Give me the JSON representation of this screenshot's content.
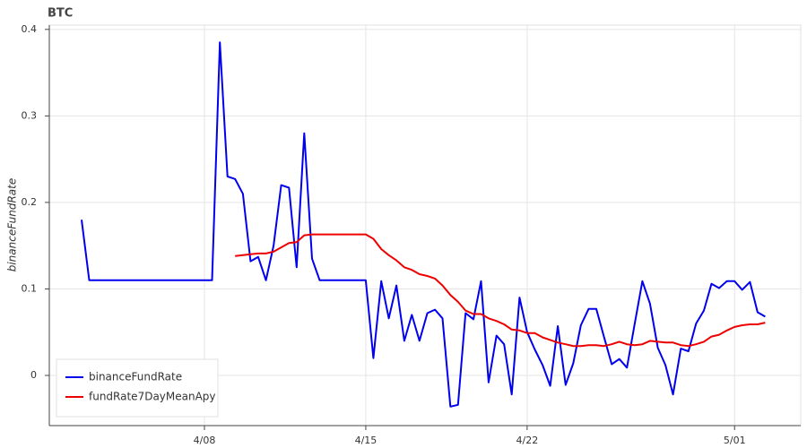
{
  "chart_data": {
    "type": "line",
    "title": "BTC",
    "y_label": "binanceFundRate",
    "x": [
      2.67,
      3,
      3.33,
      3.67,
      4,
      4.33,
      4.67,
      5,
      5.33,
      5.67,
      6,
      6.33,
      6.67,
      7,
      7.33,
      7.67,
      8,
      8.33,
      8.67,
      9,
      9.33,
      9.67,
      10,
      10.33,
      10.67,
      11,
      11.33,
      11.67,
      12,
      12.33,
      12.67,
      13,
      13.33,
      13.67,
      14,
      14.33,
      14.67,
      15,
      15.33,
      15.67,
      16,
      16.33,
      16.67,
      17,
      17.33,
      17.67,
      18,
      18.33,
      18.67,
      19,
      19.33,
      19.67,
      20,
      20.33,
      20.67,
      21,
      21.33,
      21.67,
      22,
      22.33,
      22.67,
      23,
      23.33,
      23.67,
      24,
      24.33,
      24.67,
      25,
      25.33,
      25.67,
      26,
      26.33,
      26.67,
      27,
      27.33,
      27.67,
      28,
      28.33,
      28.67,
      29,
      29.33,
      29.67,
      30,
      30.33,
      30.67,
      31,
      31.33,
      31.67,
      32,
      32.33
    ],
    "series": [
      {
        "name": "binanceFundRate",
        "color": "#0000ee",
        "values": [
          0.18,
          0.11,
          0.11,
          0.11,
          0.11,
          0.11,
          0.11,
          0.11,
          0.11,
          0.11,
          0.11,
          0.11,
          0.11,
          0.11,
          0.11,
          0.11,
          0.11,
          0.11,
          0.385,
          0.23,
          0.227,
          0.21,
          0.132,
          0.137,
          0.11,
          0.15,
          0.22,
          0.217,
          0.125,
          0.28,
          0.135,
          0.11,
          0.11,
          0.11,
          0.11,
          0.11,
          0.11,
          0.11,
          0.02,
          0.109,
          0.066,
          0.104,
          0.04,
          0.07,
          0.04,
          0.072,
          0.076,
          0.066,
          -0.036,
          -0.034,
          0.072,
          0.065,
          0.109,
          -0.008,
          0.046,
          0.036,
          -0.022,
          0.09,
          0.05,
          0.03,
          0.012,
          -0.012,
          0.057,
          -0.011,
          0.014,
          0.058,
          0.077,
          0.077,
          0.045,
          0.013,
          0.019,
          0.009,
          0.06,
          0.109,
          0.083,
          0.032,
          0.012,
          -0.022,
          0.031,
          0.028,
          0.06,
          0.075,
          0.106,
          0.101,
          0.109,
          0.109,
          0.099,
          0.108,
          0.073,
          0.068
        ]
      },
      {
        "name": "fundRate7DayMeanApy",
        "color": "#ee0000",
        "values": [
          null,
          null,
          null,
          null,
          null,
          null,
          null,
          null,
          null,
          null,
          null,
          null,
          null,
          null,
          null,
          null,
          null,
          null,
          null,
          null,
          0.138,
          0.139,
          0.14,
          0.141,
          0.141,
          0.143,
          0.148,
          0.153,
          0.154,
          0.162,
          0.163,
          0.163,
          0.163,
          0.163,
          0.163,
          0.163,
          0.163,
          0.163,
          0.158,
          0.146,
          0.139,
          0.133,
          0.125,
          0.122,
          0.117,
          0.115,
          0.112,
          0.104,
          0.093,
          0.085,
          0.075,
          0.071,
          0.071,
          0.066,
          0.063,
          0.059,
          0.053,
          0.052,
          0.049,
          0.049,
          0.044,
          0.041,
          0.038,
          0.036,
          0.034,
          0.034,
          0.035,
          0.035,
          0.034,
          0.036,
          0.039,
          0.036,
          0.035,
          0.036,
          0.04,
          0.039,
          0.038,
          0.038,
          0.035,
          0.034,
          0.036,
          0.039,
          0.045,
          0.047,
          0.052,
          0.056,
          0.058,
          0.059,
          0.059,
          0.061
        ]
      }
    ],
    "xlim": [
      1.27,
      33.87
    ],
    "xticks": [
      {
        "value": 8,
        "label": "4/08"
      },
      {
        "value": 15,
        "label": "4/15"
      },
      {
        "value": 22,
        "label": "4/22"
      },
      {
        "value": 31,
        "label": "5/01"
      }
    ],
    "ylim": [
      -0.058,
      0.405
    ],
    "yticks": [
      0,
      0.1,
      0.2,
      0.3,
      0.4
    ],
    "grid": true,
    "legend": "bottom-left"
  }
}
